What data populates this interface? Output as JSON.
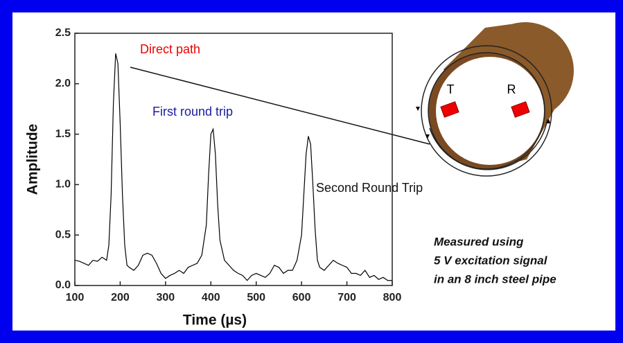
{
  "chart_data": {
    "type": "line",
    "x": [
      100,
      110,
      120,
      130,
      140,
      150,
      160,
      170,
      175,
      180,
      185,
      190,
      195,
      200,
      205,
      210,
      215,
      220,
      230,
      240,
      250,
      260,
      270,
      280,
      290,
      300,
      310,
      320,
      330,
      340,
      350,
      360,
      370,
      380,
      390,
      395,
      400,
      405,
      410,
      415,
      420,
      430,
      440,
      450,
      460,
      470,
      480,
      490,
      500,
      510,
      520,
      530,
      540,
      550,
      560,
      570,
      580,
      590,
      600,
      605,
      610,
      615,
      620,
      625,
      630,
      635,
      640,
      650,
      660,
      670,
      680,
      690,
      700,
      710,
      720,
      730,
      740,
      750,
      760,
      770,
      780,
      790,
      800
    ],
    "values": [
      0.25,
      0.24,
      0.22,
      0.2,
      0.25,
      0.24,
      0.28,
      0.25,
      0.4,
      0.9,
      1.8,
      2.3,
      2.2,
      1.6,
      0.9,
      0.4,
      0.2,
      0.18,
      0.15,
      0.2,
      0.3,
      0.32,
      0.3,
      0.22,
      0.12,
      0.07,
      0.1,
      0.12,
      0.15,
      0.12,
      0.18,
      0.2,
      0.22,
      0.3,
      0.6,
      1.1,
      1.5,
      1.55,
      1.3,
      0.8,
      0.45,
      0.25,
      0.2,
      0.15,
      0.12,
      0.1,
      0.05,
      0.1,
      0.12,
      0.1,
      0.08,
      0.12,
      0.2,
      0.18,
      0.12,
      0.15,
      0.15,
      0.25,
      0.5,
      0.9,
      1.3,
      1.48,
      1.4,
      1.0,
      0.55,
      0.25,
      0.18,
      0.15,
      0.2,
      0.25,
      0.22,
      0.2,
      0.18,
      0.12,
      0.12,
      0.1,
      0.15,
      0.08,
      0.1,
      0.06,
      0.08,
      0.05,
      0.05
    ],
    "color": "#000000",
    "xlim": [
      100,
      800
    ],
    "xticks": [
      100,
      200,
      300,
      400,
      500,
      600,
      700,
      800
    ],
    "ylim": [
      0,
      2.5
    ],
    "yticks": [
      {
        "value": 0,
        "label": "0.0"
      },
      0.5,
      {
        "value": 1,
        "label": "1.0"
      },
      1.5,
      {
        "value": 2,
        "label": "2.0"
      },
      2.5
    ],
    "xlabel": "Time (µs)",
    "ylabel": "Amplitude",
    "annotations": [
      "Direct path",
      "First round trip",
      "Second Round Trip"
    ],
    "pipe_labels": [
      "T",
      "R"
    ],
    "note": [
      "Measured using",
      "5 V excitation signal",
      "in an 8 inch steel pipe"
    ]
  }
}
